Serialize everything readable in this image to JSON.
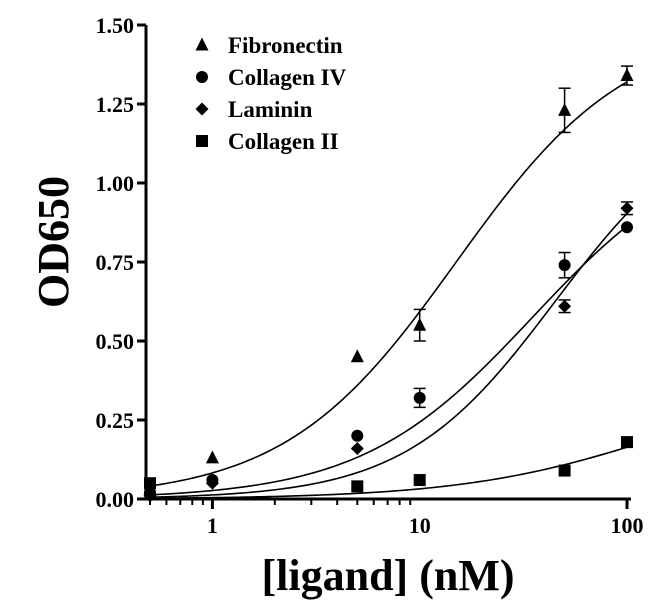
{
  "chart_data": {
    "type": "scatter",
    "xlabel": "[ligand] (nM)",
    "ylabel": "OD650",
    "xscale": "log",
    "xlim": [
      0.5,
      100
    ],
    "ylim": [
      0,
      1.5
    ],
    "xticks": [
      1,
      10,
      100
    ],
    "xtick_labels": [
      "1",
      "10",
      "100"
    ],
    "yticks": [
      0,
      0.25,
      0.5,
      0.75,
      1.0,
      1.25,
      1.5
    ],
    "ytick_labels": [
      "0.00",
      "0.25",
      "0.50",
      "0.75",
      "1.00",
      "1.25",
      "1.50"
    ],
    "grid": false,
    "legend_position": "top-left",
    "series": [
      {
        "name": "Fibronectin",
        "marker": "triangle",
        "x": [
          0.5,
          1,
          5,
          10,
          50,
          100
        ],
        "y": [
          0.03,
          0.13,
          0.45,
          0.55,
          1.23,
          1.34
        ],
        "err": [
          0,
          0,
          0,
          0.05,
          0.07,
          0.03
        ],
        "fit": {
          "top": 1.5,
          "ec50": 15,
          "hill": 1.05
        }
      },
      {
        "name": "Collagen IV",
        "marker": "circle",
        "x": [
          0.5,
          1,
          5,
          10,
          50,
          100
        ],
        "y": [
          0.02,
          0.06,
          0.2,
          0.32,
          0.74,
          0.86
        ],
        "err": [
          0,
          0,
          0,
          0.03,
          0.04,
          0
        ],
        "fit": {
          "top": 1.15,
          "ec50": 35,
          "hill": 1.05
        }
      },
      {
        "name": "Laminin",
        "marker": "diamond",
        "x": [
          0.5,
          1,
          5,
          50,
          100
        ],
        "y": [
          0.01,
          0.05,
          0.16,
          0.61,
          0.92
        ],
        "err": [
          0,
          0,
          0,
          0.02,
          0.02
        ],
        "fit": {
          "top": 1.25,
          "ec50": 45,
          "hill": 1.2
        }
      },
      {
        "name": "Collagen II",
        "marker": "square",
        "x": [
          0.5,
          5,
          10,
          50,
          100
        ],
        "y": [
          0.05,
          0.04,
          0.06,
          0.09,
          0.18
        ],
        "err": [
          0,
          0,
          0,
          0,
          0
        ],
        "fit": {
          "top": 0.4,
          "ec50": 150,
          "hill": 0.9
        }
      }
    ]
  }
}
